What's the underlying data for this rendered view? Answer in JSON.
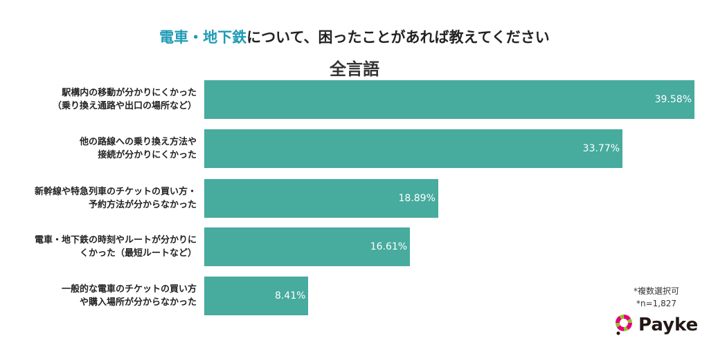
{
  "chart_data": {
    "type": "bar",
    "orientation": "horizontal",
    "title_highlight": "電車・地下鉄",
    "title_rest": "について、困ったことがあれば教えてください",
    "subtitle": "全言語",
    "categories": [
      [
        "駅構内の移動が分かりにくかった",
        "（乗り換え通路や出口の場所など）"
      ],
      [
        "他の路線への乗り換え方法や",
        "接続が分かりにくかった"
      ],
      [
        "新幹線や特急列車のチケットの買い方・",
        "予約方法が分からなかった"
      ],
      [
        "電車・地下鉄の時刻やルートが分かりに",
        "くかった（最短ルートなど）"
      ],
      [
        "一般的な電車のチケットの買い方",
        "や購入場所が分からなかった"
      ]
    ],
    "values": [
      39.58,
      33.77,
      18.89,
      16.61,
      8.41
    ],
    "value_labels": [
      "39.58%",
      "33.77%",
      "18.89%",
      "16.61%",
      "8.41%"
    ],
    "xlim": [
      0,
      39.58
    ],
    "bar_color": "#47ab9e",
    "highlight_color": "#1e9bb5"
  },
  "notes": [
    "*複数選択可",
    "*n=1,827"
  ],
  "logo": "Payke"
}
